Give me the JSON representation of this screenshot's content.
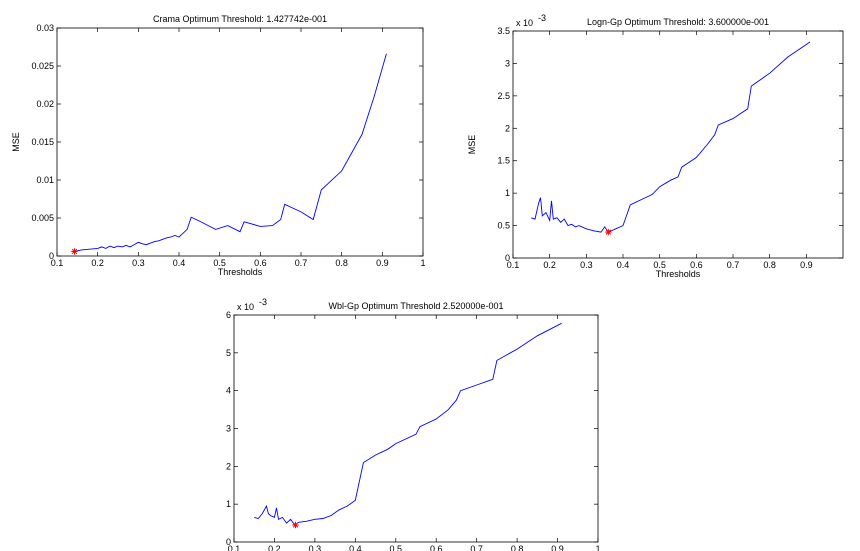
{
  "chart_data": [
    {
      "type": "line",
      "title": "Crama Optimum Threshold: 1.427742e-001",
      "xlabel": "Thresholds",
      "ylabel": "MSE",
      "exponent_label": "",
      "xlim": [
        0.1,
        1.0
      ],
      "ylim": [
        0,
        0.03
      ],
      "xticks": [
        "0.1",
        "0.2",
        "0.3",
        "0.4",
        "0.5",
        "0.6",
        "0.7",
        "0.8",
        "0.9",
        "1"
      ],
      "yticks": [
        "0",
        "0.005",
        "0.01",
        "0.015",
        "0.02",
        "0.025",
        "0.03"
      ],
      "line_color": "#0000ff",
      "marker_color": "#ff0000",
      "series": [
        {
          "x": [
            0.143,
            0.16,
            0.18,
            0.2,
            0.21,
            0.22,
            0.23,
            0.24,
            0.25,
            0.26,
            0.27,
            0.28,
            0.29,
            0.3,
            0.31,
            0.32,
            0.33,
            0.34,
            0.35,
            0.36,
            0.37,
            0.38,
            0.39,
            0.4,
            0.41,
            0.42,
            0.43,
            0.45,
            0.49,
            0.52,
            0.55,
            0.56,
            0.6,
            0.63,
            0.65,
            0.66,
            0.68,
            0.7,
            0.73,
            0.75,
            0.8,
            0.85,
            0.88,
            0.91
          ],
          "y": [
            0.0006,
            0.0008,
            0.0009,
            0.001,
            0.0012,
            0.001,
            0.0013,
            0.0011,
            0.0013,
            0.0012,
            0.0014,
            0.0012,
            0.0015,
            0.0018,
            0.0016,
            0.0015,
            0.0017,
            0.0019,
            0.002,
            0.0022,
            0.0024,
            0.0025,
            0.0027,
            0.0025,
            0.003,
            0.0035,
            0.0051,
            0.0046,
            0.0035,
            0.004,
            0.0032,
            0.0045,
            0.0039,
            0.004,
            0.0048,
            0.0068,
            0.0063,
            0.0058,
            0.0048,
            0.0087,
            0.0112,
            0.016,
            0.021,
            0.0266
          ]
        }
      ],
      "optimum": {
        "x": 0.143,
        "y": 0.0006
      }
    },
    {
      "type": "line",
      "title": "Logn-Gp Optimum Threshold: 3.600000e-001",
      "xlabel": "Thresholds",
      "ylabel": "MSE",
      "exponent_label": "x 10",
      "exponent_power": "-3",
      "xlim": [
        0.1,
        1.0
      ],
      "ylim": [
        0,
        3.5
      ],
      "xticks": [
        "0.1",
        "0.2",
        "0.3",
        "0.4",
        "0.5",
        "0.6",
        "0.7",
        "0.8",
        "0.9"
      ],
      "yticks": [
        "0",
        "0.5",
        "1",
        "1.5",
        "2",
        "2.5",
        "3",
        "3.5"
      ],
      "line_color": "#0000ff",
      "marker_color": "#ff0000",
      "series": [
        {
          "x": [
            0.15,
            0.16,
            0.17,
            0.175,
            0.18,
            0.19,
            0.2,
            0.205,
            0.21,
            0.22,
            0.23,
            0.24,
            0.25,
            0.26,
            0.27,
            0.28,
            0.3,
            0.32,
            0.34,
            0.35,
            0.36,
            0.38,
            0.4,
            0.42,
            0.45,
            0.48,
            0.5,
            0.53,
            0.55,
            0.56,
            0.6,
            0.63,
            0.65,
            0.66,
            0.7,
            0.74,
            0.75,
            0.8,
            0.85,
            0.91
          ],
          "y": [
            0.62,
            0.6,
            0.85,
            0.93,
            0.65,
            0.7,
            0.58,
            0.88,
            0.6,
            0.62,
            0.55,
            0.6,
            0.5,
            0.52,
            0.48,
            0.5,
            0.45,
            0.42,
            0.4,
            0.48,
            0.4,
            0.45,
            0.5,
            0.82,
            0.9,
            0.98,
            1.1,
            1.2,
            1.25,
            1.4,
            1.55,
            1.75,
            1.9,
            2.05,
            2.15,
            2.3,
            2.65,
            2.85,
            3.1,
            3.33
          ]
        }
      ],
      "optimum": {
        "x": 0.36,
        "y": 0.4
      }
    },
    {
      "type": "line",
      "title": "Wbl-Gp Optimum Threshold 2.520000e-001",
      "xlabel": "",
      "ylabel": "",
      "exponent_label": "x 10",
      "exponent_power": "-3",
      "xlim": [
        0.1,
        1.0
      ],
      "ylim": [
        0,
        6
      ],
      "xticks": [
        "0.1",
        "0.2",
        "0.3",
        "0.4",
        "0.5",
        "0.6",
        "0.7",
        "0.8",
        "0.9",
        "1"
      ],
      "yticks": [
        "0",
        "1",
        "2",
        "3",
        "4",
        "5",
        "6"
      ],
      "line_color": "#0000ff",
      "marker_color": "#ff0000",
      "series": [
        {
          "x": [
            0.15,
            0.16,
            0.17,
            0.18,
            0.185,
            0.19,
            0.2,
            0.205,
            0.21,
            0.22,
            0.23,
            0.24,
            0.25,
            0.26,
            0.28,
            0.3,
            0.32,
            0.34,
            0.36,
            0.38,
            0.4,
            0.42,
            0.45,
            0.48,
            0.5,
            0.53,
            0.55,
            0.56,
            0.6,
            0.63,
            0.65,
            0.66,
            0.7,
            0.74,
            0.75,
            0.8,
            0.85,
            0.91
          ],
          "y": [
            0.65,
            0.62,
            0.75,
            0.95,
            0.75,
            0.7,
            0.65,
            0.9,
            0.6,
            0.65,
            0.5,
            0.6,
            0.45,
            0.52,
            0.55,
            0.6,
            0.62,
            0.7,
            0.85,
            0.95,
            1.1,
            2.1,
            2.3,
            2.45,
            2.6,
            2.75,
            2.85,
            3.05,
            3.25,
            3.5,
            3.75,
            4.0,
            4.15,
            4.3,
            4.8,
            5.1,
            5.45,
            5.78
          ]
        }
      ],
      "optimum": {
        "x": 0.252,
        "y": 0.45
      }
    }
  ]
}
